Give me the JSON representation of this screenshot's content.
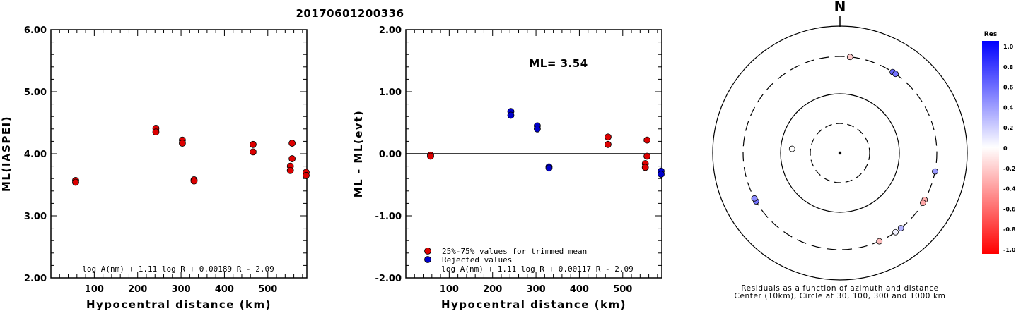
{
  "title": "20170601200336",
  "chart_data": [
    {
      "type": "scatter",
      "ylabel": "ML(IASPEI)",
      "xlabel": "Hypocentral distance (km)",
      "xlim": [
        0,
        590
      ],
      "ylim": [
        2.0,
        6.0
      ],
      "xticks": [
        "100",
        "200",
        "300",
        "400",
        "500"
      ],
      "yticks": [
        "2.00",
        "3.00",
        "4.00",
        "5.00",
        "6.00"
      ],
      "formula": "log A(nm) + 1.11 log R + 0.00189 R - 2.09",
      "series": [
        {
          "color": "#dd0000",
          "points": [
            [
              57,
              3.57
            ],
            [
              57,
              3.54
            ],
            [
              242,
              4.41
            ],
            [
              242,
              4.35
            ],
            [
              303,
              4.22
            ],
            [
              303,
              4.17
            ],
            [
              330,
              3.58
            ],
            [
              330,
              3.56
            ],
            [
              466,
              4.15
            ],
            [
              466,
              4.03
            ],
            [
              552,
              3.8
            ],
            [
              552,
              3.73
            ],
            [
              556,
              4.17
            ],
            [
              556,
              3.92
            ],
            [
              589,
              3.7
            ],
            [
              589,
              3.65
            ]
          ]
        }
      ]
    },
    {
      "type": "scatter",
      "ylabel": "ML - ML(evt)",
      "xlabel": "Hypocentral distance (km)",
      "xlim": [
        0,
        590
      ],
      "ylim": [
        -2.0,
        2.0
      ],
      "xticks": [
        "100",
        "200",
        "300",
        "400",
        "500"
      ],
      "yticks": [
        "-2.00",
        "-1.00",
        "0.00",
        "1.00",
        "2.00"
      ],
      "hline": 0,
      "annotation": "ML= 3.54",
      "formula": "log A(nm) + 1.11 log R + 0.00117 R - 2.09",
      "legend": [
        {
          "label": "25%-75% values for trimmed mean",
          "color": "#dd0000"
        },
        {
          "label": "Rejected values",
          "color": "#0000cc"
        }
      ],
      "series": [
        {
          "color": "#dd0000",
          "points": [
            [
              57,
              -0.02
            ],
            [
              57,
              -0.04
            ],
            [
              466,
              0.27
            ],
            [
              466,
              0.15
            ],
            [
              552,
              -0.16
            ],
            [
              552,
              -0.22
            ],
            [
              556,
              0.22
            ],
            [
              556,
              -0.04
            ]
          ]
        },
        {
          "color": "#0000cc",
          "points": [
            [
              242,
              0.68
            ],
            [
              242,
              0.62
            ],
            [
              303,
              0.45
            ],
            [
              303,
              0.4
            ],
            [
              330,
              -0.21
            ],
            [
              330,
              -0.23
            ],
            [
              589,
              -0.28
            ],
            [
              589,
              -0.33
            ]
          ]
        }
      ]
    },
    {
      "type": "polar",
      "north_label": "N",
      "caption_line1": "Residuals as a function of azimuth and distance",
      "caption_line2": "Center (10km), Circle at 30, 100, 300 and 1000 km",
      "stations": [
        {
          "az": 6,
          "res": -0.2
        },
        {
          "az": 33,
          "res": 0.6
        },
        {
          "az": 35,
          "res": 0.55
        },
        {
          "az": 101,
          "res": 0.4
        },
        {
          "az": 119,
          "res": -0.3
        },
        {
          "az": 121,
          "res": -0.35
        },
        {
          "az": 141,
          "res": 0.3
        },
        {
          "az": 145,
          "res": 0.05
        },
        {
          "az": 156,
          "res": -0.25
        },
        {
          "az": 240,
          "res": 0.55
        },
        {
          "az": 242,
          "res": 0.45
        },
        {
          "az": 275,
          "res": 0.0
        }
      ],
      "colorbar": {
        "title": "Res",
        "ticks": [
          "1.0",
          "0.8",
          "0.6",
          "0.4",
          "0.2",
          "0",
          "-0.2",
          "-0.4",
          "-0.6",
          "-0.8",
          "-1.0"
        ],
        "top_color": "#0000ff",
        "bottom_color": "#ff0000"
      }
    }
  ]
}
